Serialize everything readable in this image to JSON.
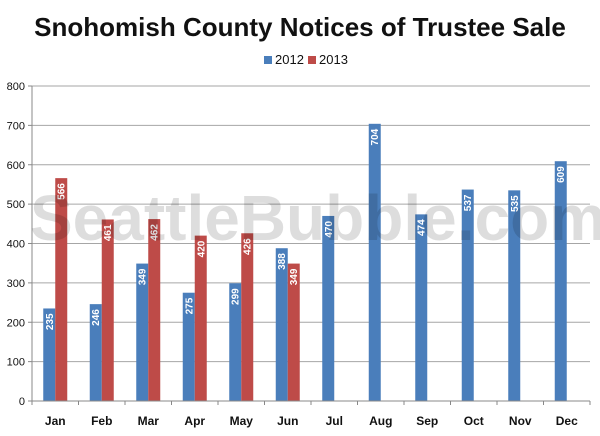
{
  "chart_data": {
    "type": "bar",
    "title": "Snohomish County Notices of Trustee Sale",
    "xlabel": "",
    "ylabel": "",
    "categories": [
      "Jan",
      "Feb",
      "Mar",
      "Apr",
      "May",
      "Jun",
      "Jul",
      "Aug",
      "Sep",
      "Oct",
      "Nov",
      "Dec"
    ],
    "series": [
      {
        "name": "2012",
        "color": "#4a7ebb",
        "values": [
          235,
          246,
          349,
          275,
          299,
          388,
          470,
          704,
          474,
          537,
          535,
          609
        ]
      },
      {
        "name": "2013",
        "color": "#be4b48",
        "values": [
          566,
          461,
          462,
          420,
          426,
          349,
          null,
          null,
          null,
          null,
          null,
          null
        ]
      }
    ],
    "ylim": [
      0,
      800
    ],
    "yticks": [
      0,
      100,
      200,
      300,
      400,
      500,
      600,
      700,
      800
    ],
    "grid": true,
    "legend_position": "top-center",
    "data_labels": true,
    "watermark": "SeattleBubble.com"
  }
}
